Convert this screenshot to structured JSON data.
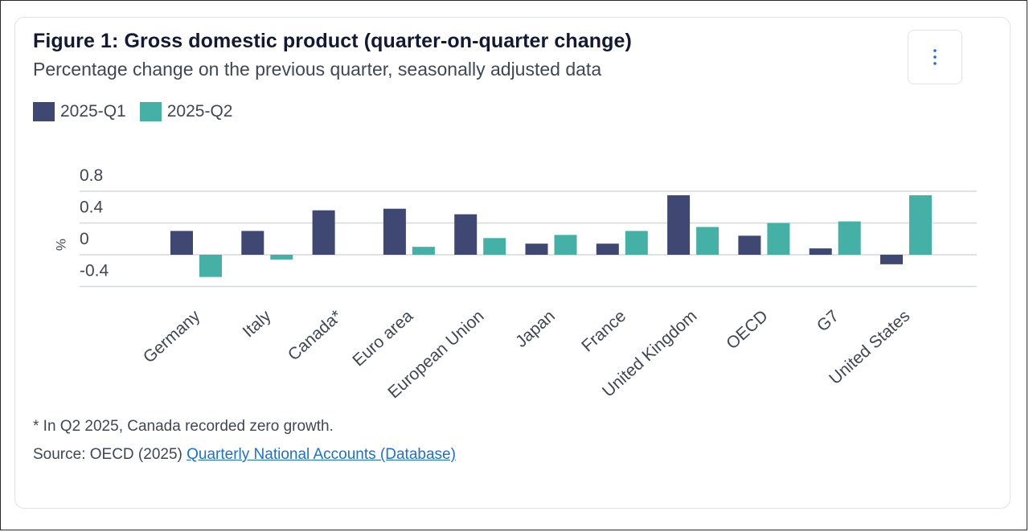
{
  "title": "Figure 1: Gross domestic product (quarter-on-quarter change)",
  "subtitle": "Percentage change on the previous quarter, seasonally adjusted data",
  "menu_icon": "kebab-menu-icon",
  "footnote": "* In Q2 2025, Canada recorded zero growth.",
  "source": {
    "prefix": "Source: OECD (2025) ",
    "link_text": "Quarterly National Accounts (Database)"
  },
  "colors": {
    "q1": "#3f4872",
    "q2": "#45b1a6",
    "grid": "#d4d8df",
    "tick": "#3f4654"
  },
  "chart_data": {
    "type": "bar",
    "title": "Figure 1: Gross domestic product (quarter-on-quarter change)",
    "ylabel": "%",
    "xlabel": "",
    "ylim": [
      -0.4,
      0.8
    ],
    "yticks": [
      0.8,
      0.4,
      0,
      -0.4
    ],
    "ytick_labels": [
      "0.8",
      "0.4",
      "0",
      "-0.4"
    ],
    "grid": true,
    "legend_position": "top-left",
    "categories": [
      "Germany",
      "Italy",
      "Canada*",
      "Euro area",
      "European Union",
      "Japan",
      "France",
      "United Kingdom",
      "OECD",
      "G7",
      "United States"
    ],
    "series": [
      {
        "name": "2025-Q1",
        "values": [
          0.3,
          0.3,
          0.56,
          0.58,
          0.51,
          0.14,
          0.14,
          0.75,
          0.24,
          0.08,
          -0.12
        ]
      },
      {
        "name": "2025-Q2",
        "values": [
          -0.28,
          -0.06,
          0.0,
          0.1,
          0.21,
          0.25,
          0.3,
          0.35,
          0.4,
          0.42,
          0.75
        ]
      }
    ]
  }
}
